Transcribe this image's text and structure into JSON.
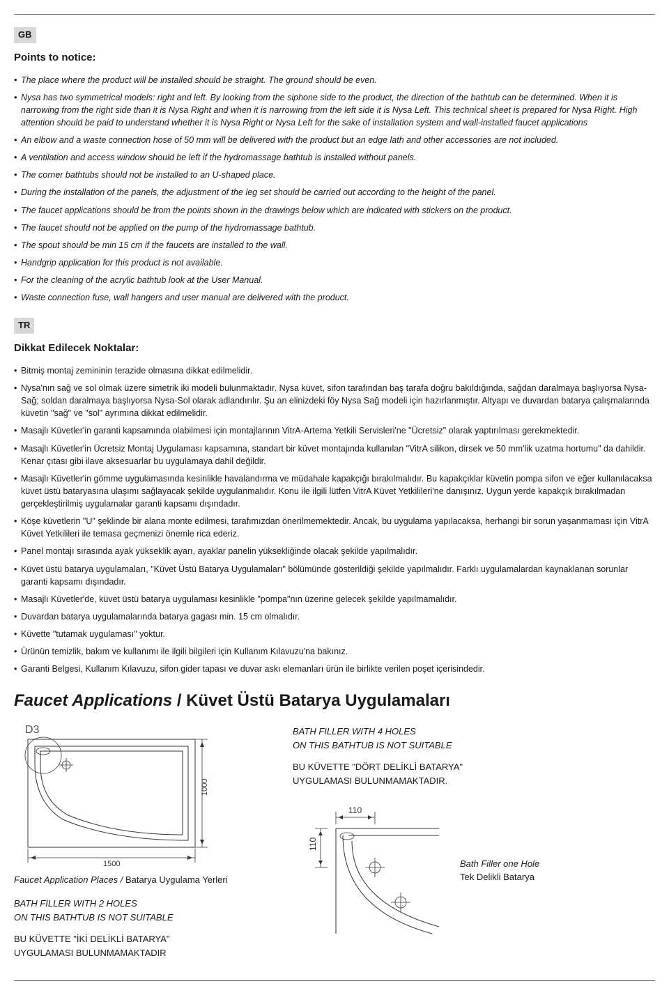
{
  "gb": {
    "tag": "GB",
    "heading": "Points to notice:",
    "items": [
      "The place where the product will be installed should be straight. The ground should be even.",
      "Nysa has two symmetrical models: right and left. By looking from the siphone side to the product, the direction of the bathtub can be determined. When it is narrowing from the right side than it is Nysa Right and when it is narrowing from the left side it is Nysa Left. This technical sheet is prepared for Nysa Right. High attention should be paid to understand whether it is Nysa Right or Nysa Left for the sake of installation system and wall-installed faucet applications",
      "An elbow and a waste connection hose of 50 mm will be delivered with the product but an edge lath and other accessories are not included.",
      "A ventilation and access window should be left if the hydromassage bathtub is installed without panels.",
      "The corner bathtubs should not be installed to an U-shaped place.",
      "During the installation of the panels, the adjustment of the leg set should be carried out according to the height of the panel.",
      "The faucet applications should be from the points shown in the drawings below which are indicated with stickers on the product.",
      "The faucet should not be applied on the pump of the hydromassage bathtub.",
      "The spout should be min 15 cm if the faucets are installed to the wall.",
      "Handgrip application for this product is not available.",
      "For the cleaning of the acrylic bathtub look at the User Manual.",
      "Waste connection fuse, wall hangers and user manual are delivered with the product."
    ]
  },
  "tr": {
    "tag": "TR",
    "heading": "Dikkat Edilecek Noktalar:",
    "items": [
      "Bitmiş montaj zemininin terazide olmasına dikkat edilmelidir.",
      "Nysa'nın sağ ve sol olmak üzere simetrik iki modeli bulunmaktadır. Nysa küvet, sifon tarafından baş tarafa doğru bakıldığında, sağdan daralmaya başlıyorsa Nysa-Sağ; soldan daralmaya başlıyorsa Nysa-Sol olarak adlandırılır. Şu an elinizdeki föy Nysa Sağ modeli için hazırlanmıştır. Altyapı ve duvardan batarya çalışmalarında küvetin \"sağ\" ve \"sol\" ayrımına dikkat edilmelidir.",
      "Masajlı Küvetler'in garanti kapsamında olabilmesi için montajlarının VitrA-Artema Yetkili Servisleri'ne \"Ücretsiz\" olarak yaptırılması gerekmektedir.",
      "Masajlı Küvetler'in Ücretsiz Montaj Uygulaması kapsamına, standart bir küvet montajında kullanılan \"VitrA silikon, dirsek ve 50 mm'lik uzatma hortumu\" da dahildir. Kenar çıtası gibi ilave aksesuarlar bu uygulamaya dahil değildir.",
      "Masajlı Küvetler'in gömme uygulamasında kesinlikle havalandırma ve müdahale kapakçığı bırakılmalıdır. Bu kapakçıklar küvetin pompa sifon ve eğer kullanılacaksa küvet üstü bataryasına ulaşımı sağlayacak şekilde uygulanmalıdır. Konu ile ilgili lütfen VitrA Küvet Yetkilileri'ne danışınız. Uygun yerde kapakçık bırakılmadan gerçekleştirilmiş uygulamalar garanti kapsamı dışındadır.",
      "Köşe küvetlerin \"U\" şeklinde bir alana monte edilmesi, tarafımızdan önerilmemektedir. Ancak, bu uygulama yapılacaksa, herhangi bir sorun yaşanmaması için VitrA Küvet Yetkilileri ile temasa geçmenizi önemle rica ederiz.",
      "Panel montajı sırasında ayak yükseklik ayarı, ayaklar panelin yüksekliğinde olacak şekilde yapılmalıdır.",
      "Küvet üstü batarya uygulamaları, \"Küvet Üstü Batarya Uygulamaları\" bölümünde gösterildiği şekilde yapılmalıdır. Farklı uygulamalardan kaynaklanan sorunlar garanti kapsamı dışındadır.",
      "Masajlı Küvetler'de, küvet üstü batarya uygulaması kesinlikle \"pompa\"nın üzerine gelecek şekilde yapılmamalıdır.",
      "Duvardan batarya uygulamalarında batarya gagası min. 15 cm olmalıdır.",
      "Küvette \"tutamak uygulaması\" yoktur.",
      "Ürünün temizlik, bakım ve kullanımı ile ilgili bilgileri için Kullanım Kılavuzu'na bakınız.",
      "Garanti Belgesi, Kullanım Kılavuzu, sifon gider tapası ve duvar askı elemanları ürün ile birlikte verilen poşet içerisindedir."
    ]
  },
  "faucet": {
    "title_it": "Faucet Applications",
    "title_sep": " / ",
    "title_reg": "Küvet Üstü Batarya Uygulamaları",
    "d3_label": "D3",
    "dim_width": "1500",
    "dim_height": "1000",
    "caption_it": "Faucet Application Places / ",
    "caption_reg": "Batarya Uygulama Yerleri",
    "two_hole_en": "BATH FILLER WITH 2 HOLES\nON THIS BATHTUB IS NOT SUITABLE",
    "two_hole_tr": "BU KÜVETTE \"İKİ DELİKLİ BATARYA\"\nUYGULAMASI BULUNMAMAKTADIR",
    "four_hole_en": "BATH FILLER WITH 4 HOLES\nON THIS BATHTUB IS NOT SUITABLE",
    "four_hole_tr": "BU KÜVETTE \"DÖRT DELİKLİ BATARYA\"\nUYGULAMASI BULUNMAMAKTADIR.",
    "detail_110a": "110",
    "detail_110b": "110",
    "one_hole_it": "Bath Filler one Hole",
    "one_hole_reg": "Tek Delikli Batarya"
  }
}
